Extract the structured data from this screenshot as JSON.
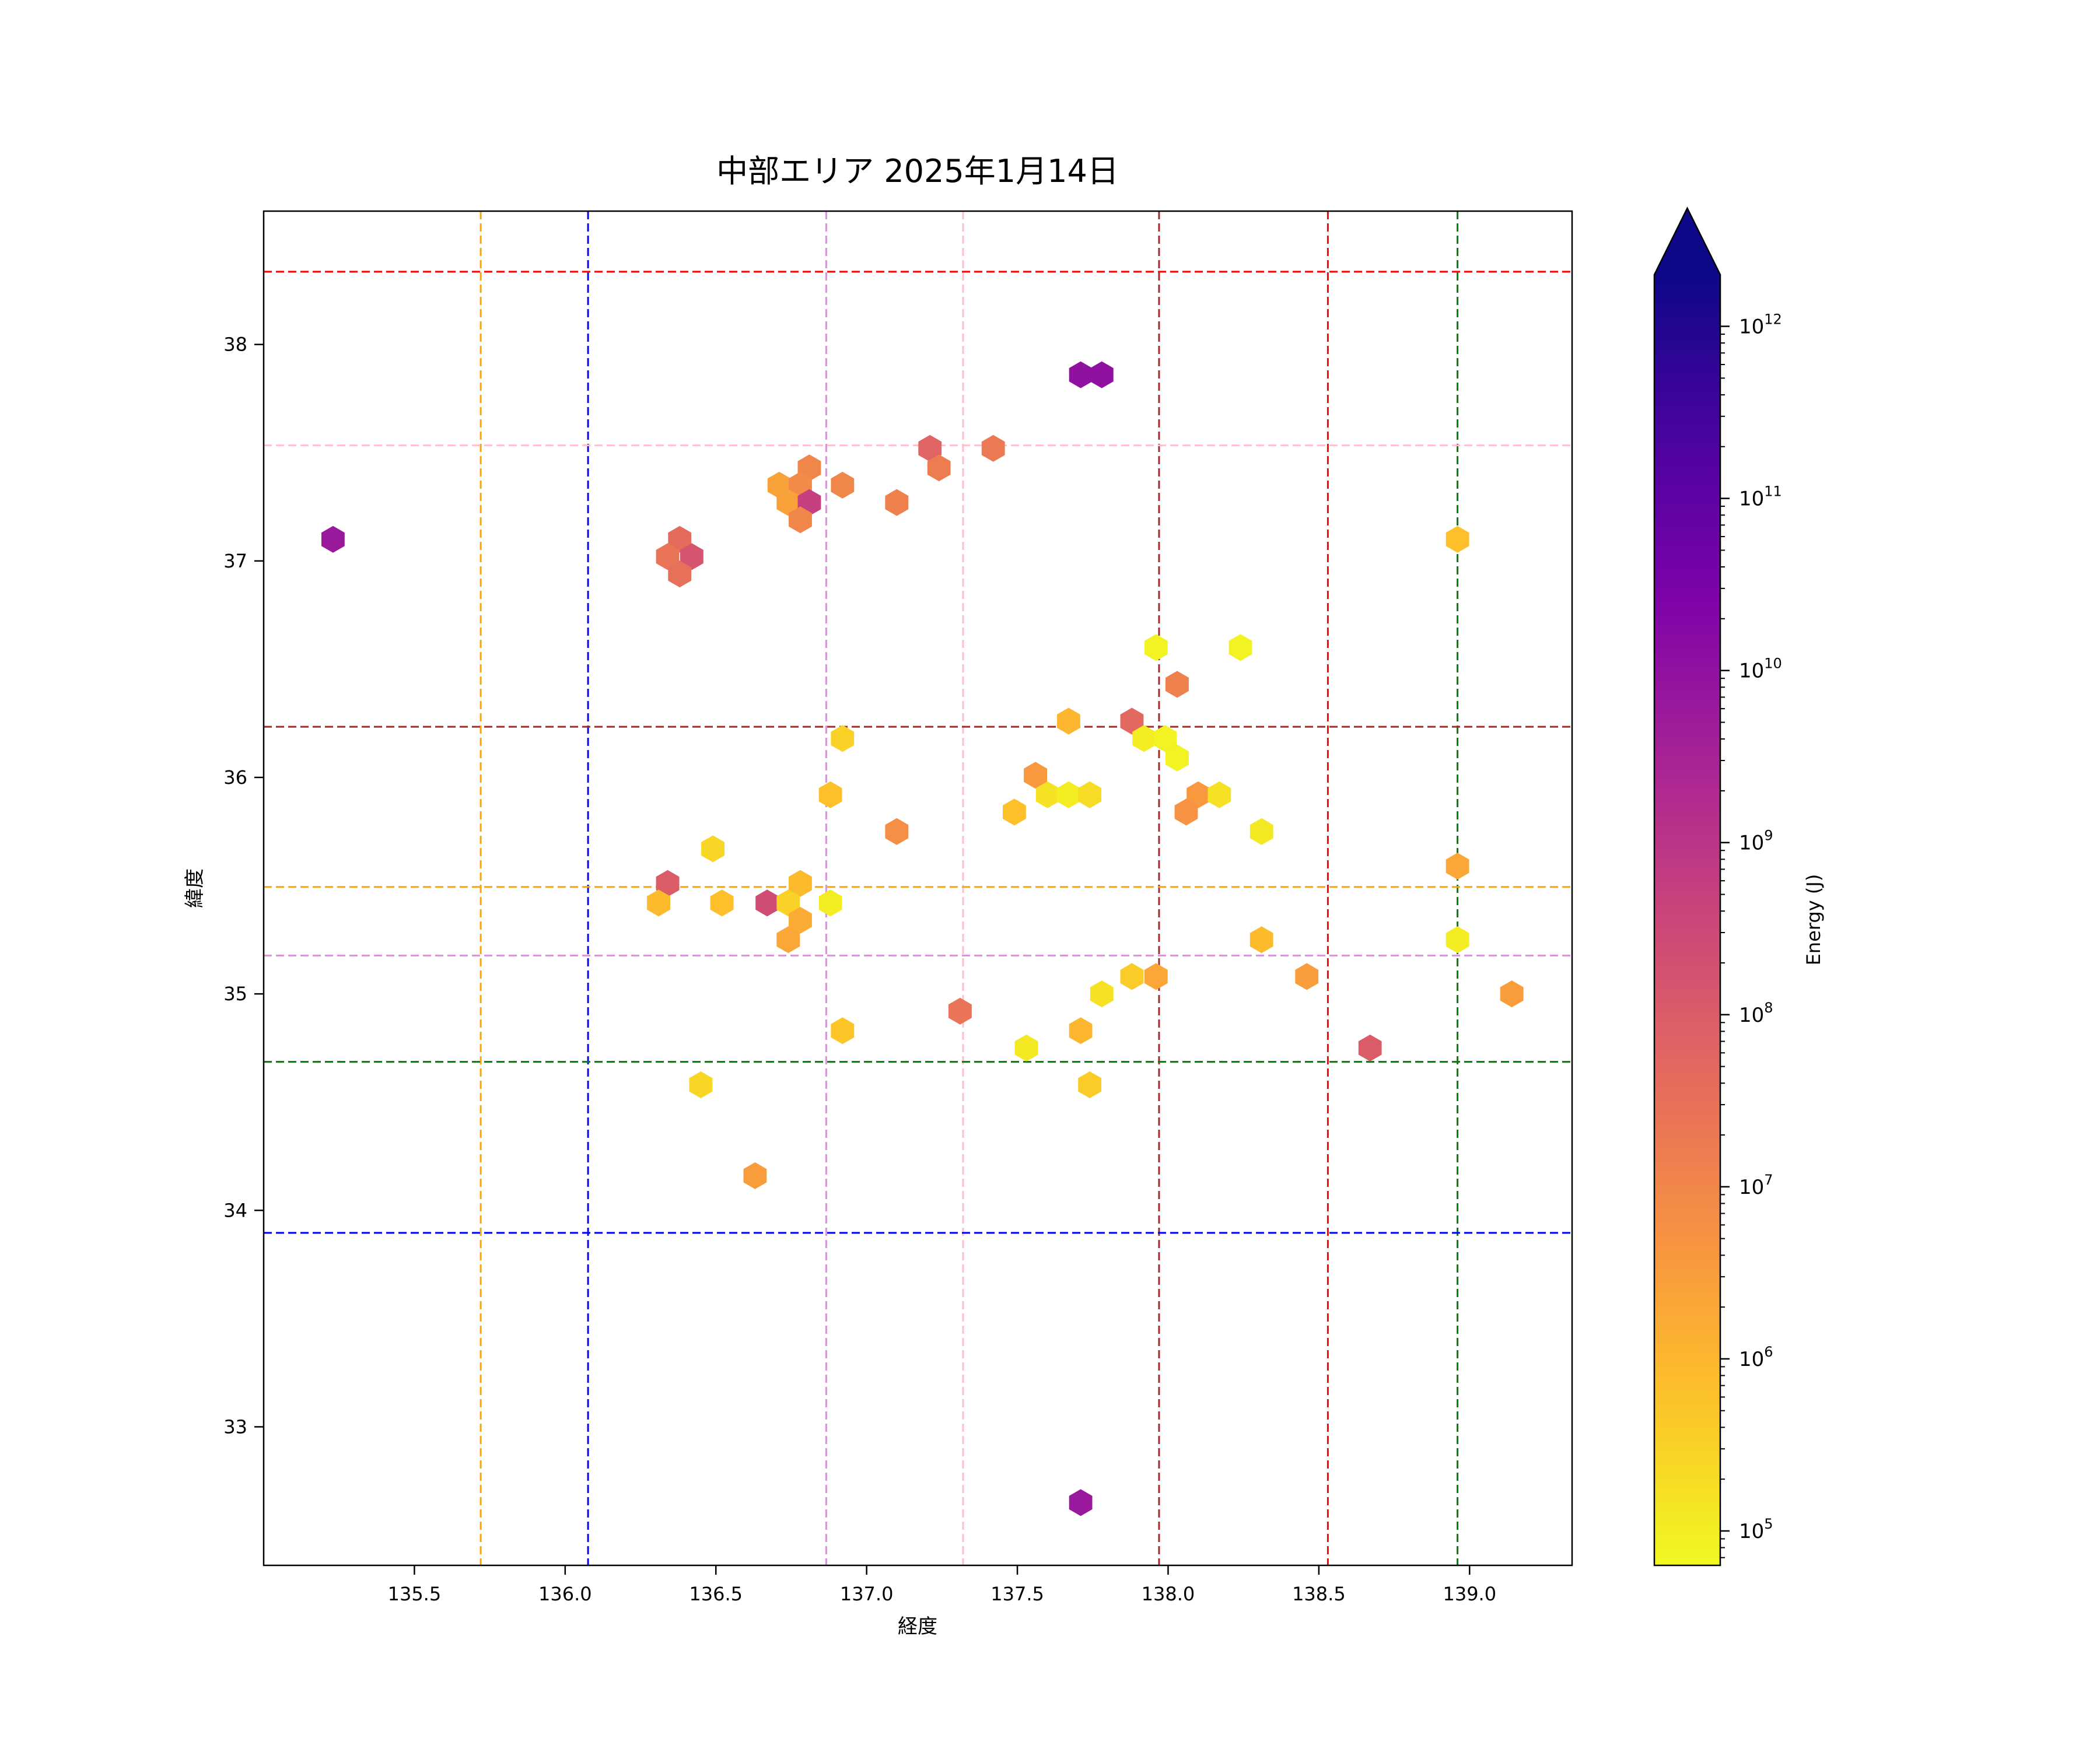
{
  "chart_data": {
    "type": "heatmap",
    "subtype": "hexbin",
    "title": "中部エリア 2025年1月14日",
    "xlabel": "経度",
    "ylabel": "緯度",
    "xlim": [
      135.0,
      139.34
    ],
    "ylim": [
      32.36,
      38.616
    ],
    "xticks": [
      135.5,
      136.0,
      136.5,
      137.0,
      137.5,
      138.0,
      138.5,
      139.0
    ],
    "xtick_labels": [
      "135.5",
      "136.0",
      "136.5",
      "137.0",
      "137.5",
      "138.0",
      "138.5",
      "139.0"
    ],
    "yticks": [
      33,
      34,
      35,
      36,
      37,
      38
    ],
    "ytick_labels": [
      "33",
      "34",
      "35",
      "36",
      "37",
      "38"
    ],
    "grid": false,
    "colorbar": {
      "label": "Energy (J)",
      "scale": "log",
      "colormap": "plasma",
      "log10_range": [
        4.8,
        12.3
      ],
      "extend": "max",
      "ticks": [
        5,
        6,
        7,
        8,
        9,
        10,
        11,
        12
      ],
      "tick_base": "10"
    },
    "vlines": [
      {
        "lon": 135.72,
        "color": "#ffa500"
      },
      {
        "lon": 136.076,
        "color": "#0000ff"
      },
      {
        "lon": 136.866,
        "color": "#ee82ee"
      },
      {
        "lon": 137.32,
        "color": "#ffc0cb"
      },
      {
        "lon": 137.97,
        "color": "#a52a2a"
      },
      {
        "lon": 138.53,
        "color": "#ff0000"
      },
      {
        "lon": 138.96,
        "color": "#008000"
      }
    ],
    "hlines": [
      {
        "lat": 38.336,
        "color": "#ff0000"
      },
      {
        "lat": 37.534,
        "color": "#ffc0cb"
      },
      {
        "lat": 36.234,
        "color": "#a52a2a"
      },
      {
        "lat": 35.494,
        "color": "#ffa500"
      },
      {
        "lat": 35.177,
        "color": "#ee82ee"
      },
      {
        "lat": 34.686,
        "color": "#008000"
      },
      {
        "lat": 33.896,
        "color": "#0000ff"
      }
    ],
    "hexbins_columns": [
      "lon",
      "lat",
      "log10_energy_J"
    ],
    "hexbins": [
      [
        135.23,
        37.1,
        9.8
      ],
      [
        137.71,
        37.86,
        10.0
      ],
      [
        137.78,
        37.86,
        10.0
      ],
      [
        137.21,
        37.52,
        7.8
      ],
      [
        137.24,
        37.43,
        7.2
      ],
      [
        137.42,
        37.52,
        7.3
      ],
      [
        136.81,
        37.43,
        7.0
      ],
      [
        136.71,
        37.35,
        6.4
      ],
      [
        136.78,
        37.35,
        6.9
      ],
      [
        136.74,
        37.27,
        6.4
      ],
      [
        136.81,
        37.27,
        8.7
      ],
      [
        136.78,
        37.19,
        7.0
      ],
      [
        136.92,
        37.35,
        7.0
      ],
      [
        137.1,
        37.27,
        7.1
      ],
      [
        136.38,
        37.1,
        7.6
      ],
      [
        136.34,
        37.02,
        7.4
      ],
      [
        136.42,
        37.02,
        8.2
      ],
      [
        136.38,
        36.94,
        7.5
      ],
      [
        138.96,
        37.1,
        5.8
      ],
      [
        137.96,
        36.6,
        4.9
      ],
      [
        138.24,
        36.6,
        4.9
      ],
      [
        138.03,
        36.43,
        7.1
      ],
      [
        137.67,
        36.26,
        6.0
      ],
      [
        137.88,
        36.26,
        7.7
      ],
      [
        137.92,
        36.18,
        5.0
      ],
      [
        137.99,
        36.18,
        4.9
      ],
      [
        138.03,
        36.09,
        4.9
      ],
      [
        136.92,
        36.18,
        5.5
      ],
      [
        137.56,
        36.01,
        6.6
      ],
      [
        137.6,
        35.92,
        5.2
      ],
      [
        137.67,
        35.92,
        5.0
      ],
      [
        137.74,
        35.92,
        5.3
      ],
      [
        137.49,
        35.84,
        5.8
      ],
      [
        138.1,
        35.92,
        6.6
      ],
      [
        138.06,
        35.84,
        6.7
      ],
      [
        138.17,
        35.92,
        5.2
      ],
      [
        138.31,
        35.75,
        5.1
      ],
      [
        136.88,
        35.92,
        5.8
      ],
      [
        137.1,
        35.75,
        6.8
      ],
      [
        136.49,
        35.67,
        5.4
      ],
      [
        136.34,
        35.51,
        8.0
      ],
      [
        136.67,
        35.42,
        8.4
      ],
      [
        136.31,
        35.42,
        5.9
      ],
      [
        136.52,
        35.42,
        5.8
      ],
      [
        136.78,
        35.51,
        5.9
      ],
      [
        136.74,
        35.42,
        5.5
      ],
      [
        136.88,
        35.42,
        5.0
      ],
      [
        136.78,
        35.34,
        6.2
      ],
      [
        136.74,
        35.25,
        6.3
      ],
      [
        138.96,
        35.59,
        6.3
      ],
      [
        138.31,
        35.25,
        5.9
      ],
      [
        138.96,
        35.25,
        5.0
      ],
      [
        137.88,
        35.08,
        5.6
      ],
      [
        137.96,
        35.08,
        6.3
      ],
      [
        137.78,
        35.0,
        5.2
      ],
      [
        138.46,
        35.08,
        6.5
      ],
      [
        139.14,
        35.0,
        6.5
      ],
      [
        137.31,
        34.92,
        7.4
      ],
      [
        136.92,
        34.83,
        5.7
      ],
      [
        137.71,
        34.83,
        6.0
      ],
      [
        137.53,
        34.75,
        5.1
      ],
      [
        138.67,
        34.75,
        8.0
      ],
      [
        136.45,
        34.58,
        5.4
      ],
      [
        137.74,
        34.58,
        5.6
      ],
      [
        136.63,
        34.16,
        6.5
      ],
      [
        137.71,
        32.65,
        9.8
      ]
    ]
  }
}
